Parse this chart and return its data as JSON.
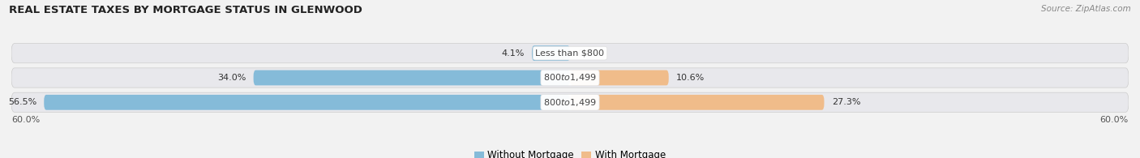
{
  "title": "REAL ESTATE TAXES BY MORTGAGE STATUS IN GLENWOOD",
  "source": "Source: ZipAtlas.com",
  "categories": [
    "Less than $800",
    "$800 to $1,499",
    "$800 to $1,499"
  ],
  "without_mortgage": [
    4.1,
    34.0,
    56.5
  ],
  "with_mortgage": [
    0.0,
    10.6,
    27.3
  ],
  "axis_max": 60.0,
  "blue_color": "#85BBD9",
  "orange_color": "#F0BC8A",
  "bg_row_color": "#E8E8EC",
  "bg_fig_color": "#F2F2F2",
  "label_without": "Without Mortgage",
  "label_with": "With Mortgage",
  "legend_blue": "#85BBD9",
  "legend_orange": "#F0BC8A"
}
